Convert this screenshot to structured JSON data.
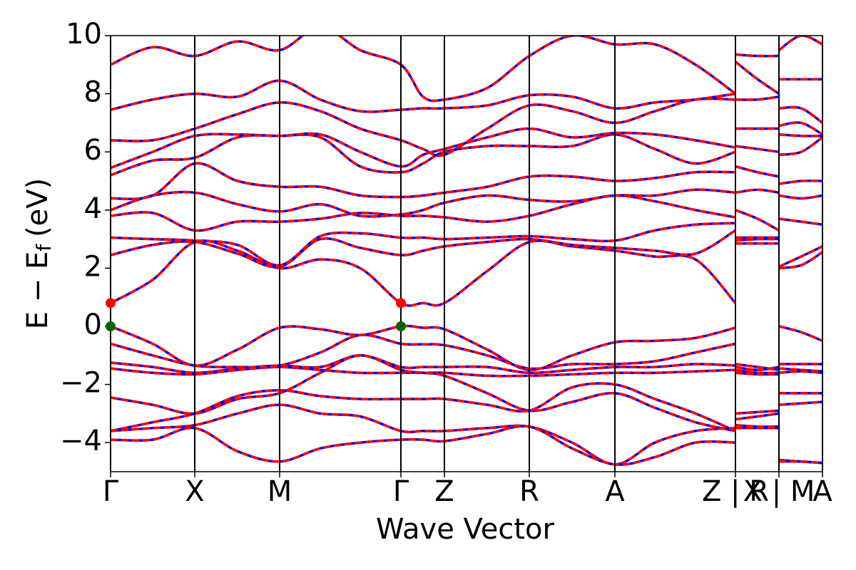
{
  "chart_data": {
    "type": "line",
    "xlabel": "Wave Vector",
    "ylabel": {
      "main": "E − E",
      "sub": "f",
      "unit": "(eV)"
    },
    "color": "#0000ff",
    "dash_color": "#ff0000",
    "xlim": [
      0,
      9.98
    ],
    "ylim": [
      -5,
      10
    ],
    "xticks": [
      {
        "value": 0,
        "label": "Γ"
      },
      {
        "value": 1.18,
        "label": "X"
      },
      {
        "value": 2.37,
        "label": "M"
      },
      {
        "value": 4.07,
        "label": "Γ"
      },
      {
        "value": 4.68,
        "label": "Z"
      },
      {
        "value": 5.87,
        "label": "R"
      },
      {
        "value": 7.07,
        "label": "A"
      },
      {
        "value": 8.76,
        "label": "Z | R"
      },
      {
        "value": 9.37,
        "label": "X | M"
      },
      {
        "value": 9.98,
        "label": "A"
      }
    ],
    "yticks": [
      {
        "value": -4,
        "label": "−4"
      },
      {
        "value": -2,
        "label": "−2"
      },
      0,
      2,
      4,
      6,
      8,
      10
    ],
    "x": [
      0,
      0.59,
      1.18,
      1.78,
      2.37,
      2.94,
      3.5,
      4.07,
      4.38,
      4.68,
      5.28,
      5.87,
      6.47,
      7.07,
      7.63,
      8.2,
      8.76,
      8.76,
      8.76,
      9.07,
      9.37,
      9.37,
      9.37,
      9.68,
      9.98
    ],
    "series": [
      {
        "values": [
          0,
          -0.6,
          -1.35,
          -0.8,
          -0.05,
          -0.1,
          -0.3,
          0,
          -0.05,
          -0.1,
          -0.8,
          -1.5,
          -1.0,
          -0.55,
          -0.5,
          -0.4,
          -0.05,
          null,
          -1.3,
          -1.4,
          -1.5,
          null,
          0,
          -0.2,
          -0.5
        ]
      },
      {
        "values": [
          -0.6,
          -1.0,
          -1.35,
          -1.4,
          -1.35,
          -0.9,
          -0.3,
          -0.6,
          -0.62,
          -0.65,
          -1.0,
          -1.45,
          -1.3,
          -1.3,
          -1.2,
          -0.9,
          -0.6,
          null,
          -1.4,
          -1.5,
          -1.4,
          null,
          -1.3,
          -1.3,
          -1.3
        ]
      },
      {
        "values": [
          -1.25,
          -1.4,
          -1.6,
          -1.45,
          -1.35,
          -1.4,
          -1.0,
          -1.4,
          -1.4,
          -1.4,
          -1.4,
          -1.6,
          -1.5,
          -1.4,
          -1.4,
          -1.3,
          -1.35,
          null,
          -1.5,
          -1.6,
          -1.6,
          null,
          -1.45,
          -1.5,
          -1.55
        ]
      },
      {
        "values": [
          -1.45,
          -1.6,
          -1.65,
          -1.5,
          -1.4,
          -1.5,
          -1.6,
          -1.6,
          -1.6,
          -1.6,
          -1.7,
          -1.7,
          -1.65,
          -1.6,
          -1.6,
          -1.55,
          -1.5,
          null,
          -1.6,
          -1.65,
          -1.65,
          null,
          -1.6,
          -1.55,
          -1.6
        ]
      },
      {
        "values": [
          -2.45,
          -2.7,
          -3.0,
          -2.5,
          -2.3,
          -1.6,
          -1.0,
          -1.5,
          -1.6,
          -1.7,
          -2.3,
          -2.9,
          -2.6,
          -2.3,
          -2.8,
          -3.3,
          -3.6,
          null,
          -3.0,
          -2.95,
          -2.9,
          null,
          -2.3,
          -2.3,
          -2.3
        ]
      },
      {
        "values": [
          -3.6,
          -3.3,
          -3.0,
          -2.4,
          -2.2,
          -2.4,
          -2.5,
          -2.5,
          -2.5,
          -2.5,
          -2.7,
          -2.9,
          -2.1,
          -2.0,
          -2.5,
          -3.0,
          -3.6,
          null,
          -3.2,
          -3.1,
          -3.0,
          null,
          -2.7,
          -2.65,
          -2.6
        ]
      },
      {
        "values": [
          -3.6,
          -3.5,
          -3.4,
          -3.0,
          -2.7,
          -3.0,
          -3.1,
          -3.6,
          -3.6,
          -3.6,
          -3.5,
          -3.45,
          -4.0,
          -4.75,
          -4.0,
          -3.6,
          -3.5,
          null,
          -3.4,
          -3.45,
          -3.45,
          null,
          -4.6,
          -4.65,
          -4.7
        ]
      },
      {
        "values": [
          -3.9,
          -3.9,
          -3.5,
          -4.3,
          -4.65,
          -4.2,
          -4.0,
          -3.9,
          -3.9,
          -3.95,
          -3.7,
          -3.45,
          -4.2,
          -4.75,
          -4.5,
          -4.0,
          -4.0,
          null,
          -3.5,
          -3.5,
          -3.5,
          null,
          -4.65,
          -4.65,
          -4.7
        ]
      },
      {
        "values": [
          0.8,
          1.6,
          2.9,
          2.6,
          2.0,
          2.3,
          2.0,
          0.8,
          0.8,
          0.8,
          1.9,
          2.9,
          2.75,
          2.6,
          2.4,
          2.3,
          0.8,
          null,
          2.85,
          2.85,
          2.85,
          null,
          2.0,
          2.1,
          2.55
        ]
      },
      {
        "values": [
          2.45,
          2.8,
          2.9,
          2.5,
          2.05,
          3.0,
          2.7,
          2.45,
          2.6,
          2.75,
          2.9,
          3.0,
          2.8,
          2.7,
          2.6,
          2.5,
          3.3,
          null,
          2.95,
          3.0,
          3.0,
          null,
          2.05,
          2.4,
          2.75
        ]
      },
      {
        "values": [
          3.05,
          3.0,
          2.95,
          2.8,
          2.1,
          3.1,
          3.2,
          3.05,
          3.05,
          3.0,
          3.05,
          3.1,
          3.0,
          2.95,
          3.3,
          3.5,
          3.55,
          null,
          3.05,
          3.05,
          3.05,
          null,
          3.7,
          3.6,
          3.5
        ]
      },
      {
        "values": [
          3.8,
          3.9,
          3.3,
          3.6,
          3.6,
          3.7,
          3.9,
          3.8,
          3.8,
          3.75,
          3.6,
          3.8,
          4.2,
          4.5,
          4.3,
          4.0,
          3.75,
          null,
          4.0,
          3.7,
          3.3,
          null,
          4.5,
          4.4,
          4.5
        ]
      },
      {
        "values": [
          4.0,
          4.5,
          4.6,
          4.2,
          3.95,
          4.2,
          3.8,
          3.85,
          4.0,
          4.25,
          4.5,
          4.35,
          4.3,
          4.5,
          4.5,
          4.7,
          4.6,
          null,
          4.6,
          4.7,
          4.6,
          null,
          4.9,
          5.0,
          5.0
        ]
      },
      {
        "values": [
          4.4,
          4.5,
          5.6,
          5.0,
          4.8,
          4.8,
          4.5,
          4.45,
          4.5,
          4.6,
          4.8,
          5.15,
          5.15,
          5.0,
          5.1,
          5.3,
          5.3,
          null,
          5.5,
          5.3,
          5.15,
          null,
          5.9,
          6.0,
          6.5
        ]
      },
      {
        "values": [
          5.2,
          5.7,
          5.8,
          6.5,
          6.55,
          6.5,
          5.5,
          5.3,
          5.6,
          6.0,
          6.2,
          6.2,
          6.2,
          6.6,
          6.1,
          5.6,
          6.0,
          null,
          6.2,
          6.1,
          6.0,
          null,
          6.6,
          6.55,
          6.55
        ]
      },
      {
        "values": [
          5.45,
          6.0,
          6.55,
          6.6,
          6.55,
          6.6,
          6.0,
          5.5,
          5.9,
          6.1,
          6.5,
          6.8,
          6.5,
          6.65,
          6.6,
          6.4,
          6.15,
          null,
          6.8,
          6.8,
          6.8,
          null,
          6.9,
          7.0,
          6.6
        ]
      },
      {
        "values": [
          6.4,
          6.4,
          6.8,
          7.3,
          7.7,
          7.4,
          6.8,
          6.4,
          6.1,
          5.9,
          6.8,
          7.6,
          7.4,
          7.0,
          7.4,
          7.8,
          7.8,
          null,
          7.8,
          7.8,
          7.9,
          null,
          7.5,
          7.5,
          7.0
        ]
      },
      {
        "values": [
          7.45,
          7.8,
          8.0,
          7.9,
          8.45,
          7.8,
          7.4,
          7.45,
          7.5,
          7.5,
          7.6,
          7.95,
          7.9,
          7.5,
          7.7,
          7.8,
          8.0,
          null,
          9.1,
          8.5,
          8.0,
          null,
          8.5,
          8.5,
          8.5
        ]
      },
      {
        "values": [
          9.0,
          9.6,
          9.3,
          9.8,
          9.5,
          10.3,
          9.5,
          9.0,
          7.9,
          7.8,
          8.2,
          9.3,
          10.0,
          9.7,
          9.7,
          9.0,
          8.0,
          null,
          9.35,
          9.3,
          9.3,
          null,
          9.5,
          10.0,
          9.7
        ]
      }
    ],
    "points": [
      {
        "color": "red",
        "x": [
          0,
          4.07
        ],
        "y": [
          0.8,
          0.8
        ]
      },
      {
        "color": "darkgreen",
        "x": [
          0,
          4.07
        ],
        "y": [
          0,
          0
        ]
      }
    ]
  }
}
